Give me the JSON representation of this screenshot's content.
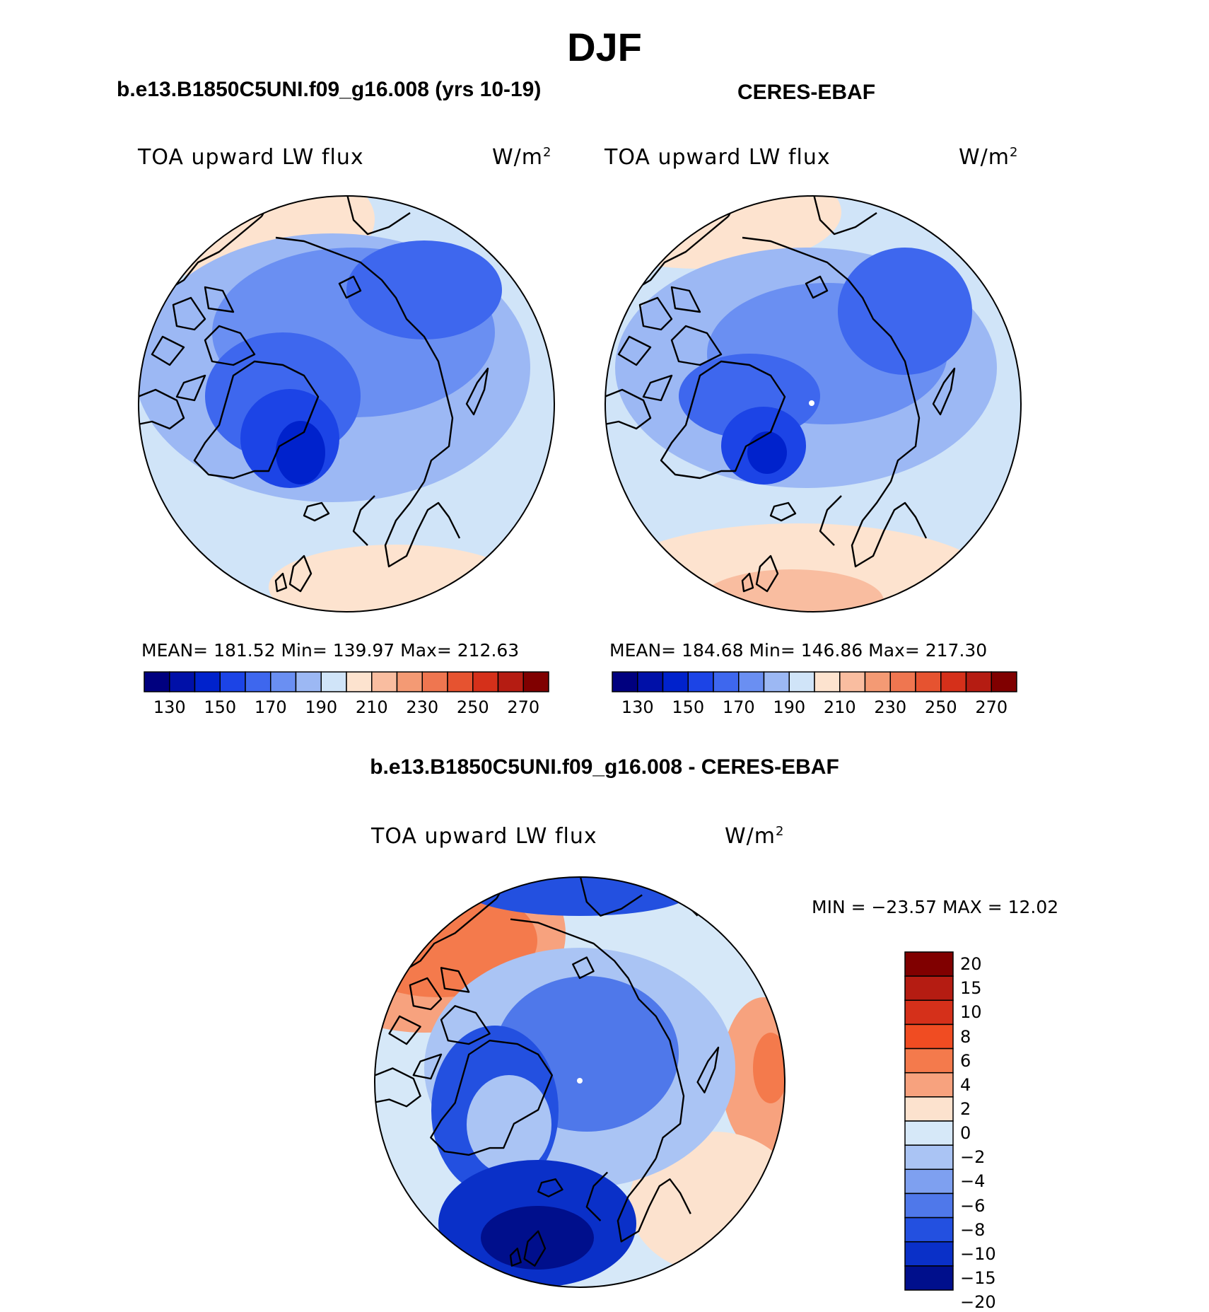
{
  "title": "DJF",
  "panels": [
    {
      "id": "model",
      "case_title": "b.e13.B1850C5UNI.f09_g16.008 (yrs 10-19)",
      "field_label": "TOA upward LW flux",
      "units_base": "W/m",
      "units_exp": "2",
      "stats_text": "MEAN= 181.52   Min= 139.97   Max= 212.63",
      "stats": {
        "mean": 181.52,
        "min": 139.97,
        "max": 212.63
      }
    },
    {
      "id": "obs",
      "case_title": "CERES-EBAF",
      "field_label": "TOA upward LW flux",
      "units_base": "W/m",
      "units_exp": "2",
      "stats_text": "MEAN= 184.68   Min= 146.86   Max= 217.30",
      "stats": {
        "mean": 184.68,
        "min": 146.86,
        "max": 217.3
      }
    }
  ],
  "abs_colorbar": {
    "colors": [
      "#00007f",
      "#0010a8",
      "#0022cc",
      "#1c44e6",
      "#3e67ee",
      "#6a8ff2",
      "#9cb8f4",
      "#d0e4f8",
      "#fde3cf",
      "#f9bda0",
      "#f49a74",
      "#ef7650",
      "#e65330",
      "#d5301a",
      "#b51c12",
      "#800000"
    ],
    "tick_labels": [
      "130",
      "150",
      "170",
      "190",
      "210",
      "230",
      "250",
      "270"
    ]
  },
  "diff_panel": {
    "title": "b.e13.B1850C5UNI.f09_g16.008 - CERES-EBAF",
    "field_label": "TOA upward LW flux",
    "units_base": "W/m",
    "units_exp": "2",
    "minmax_text": "MIN = −23.57 MAX =   12.02",
    "min": -23.57,
    "max": 12.02,
    "colorbar": {
      "colors": [
        "#800000",
        "#b51c12",
        "#d5301a",
        "#f04c22",
        "#f47a4c",
        "#f7a27e",
        "#fce2ce",
        "#d6e8f8",
        "#aac4f4",
        "#7ea0f0",
        "#4f78ea",
        "#2350e0",
        "#0a30c8",
        "#000f8c"
      ],
      "tick_labels": [
        "20",
        "15",
        "10",
        "8",
        "6",
        "4",
        "2",
        "0",
        "−2",
        "−4",
        "−6",
        "−8",
        "−10",
        "−15",
        "−20"
      ]
    }
  }
}
